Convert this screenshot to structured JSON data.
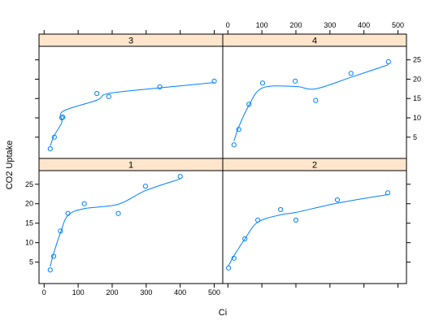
{
  "chart_data": {
    "type": "scatter",
    "xlabel": "Ci",
    "ylabel": "CO2 Uptake",
    "xlim": [
      -15,
      525
    ],
    "ylim": [
      -0.5,
      28.5
    ],
    "xticks": [
      0,
      100,
      200,
      300,
      400,
      500
    ],
    "yticks": [
      5,
      10,
      15,
      20,
      25
    ],
    "colors": {
      "points": "#0080ff",
      "strip": "#ffe5cc",
      "frame": "#000000"
    },
    "smoother": "loess curve",
    "panels": [
      {
        "label": "3",
        "row": "top",
        "col": "left",
        "x": [
          18,
          30,
          52,
          55,
          155,
          190,
          340,
          500
        ],
        "y": [
          2.0,
          5.0,
          10.0,
          10.2,
          16.3,
          15.5,
          18.0,
          19.5
        ]
      },
      {
        "label": "4",
        "row": "top",
        "col": "right",
        "x": [
          18,
          32,
          62,
          102,
          198,
          258,
          362,
          472
        ],
        "y": [
          3.0,
          7.0,
          13.5,
          19.0,
          19.5,
          14.5,
          21.5,
          24.5
        ]
      },
      {
        "label": "1",
        "row": "bottom",
        "col": "left",
        "x": [
          18,
          28,
          48,
          70,
          118,
          218,
          298,
          400
        ],
        "y": [
          3.0,
          6.5,
          13.0,
          17.5,
          20.0,
          17.5,
          24.5,
          27.0
        ]
      },
      {
        "label": "2",
        "row": "bottom",
        "col": "right",
        "x": [
          2,
          18,
          50,
          88,
          155,
          200,
          322,
          470
        ],
        "y": [
          3.5,
          6.0,
          11.0,
          15.8,
          18.5,
          15.8,
          21.0,
          22.8
        ]
      }
    ]
  }
}
